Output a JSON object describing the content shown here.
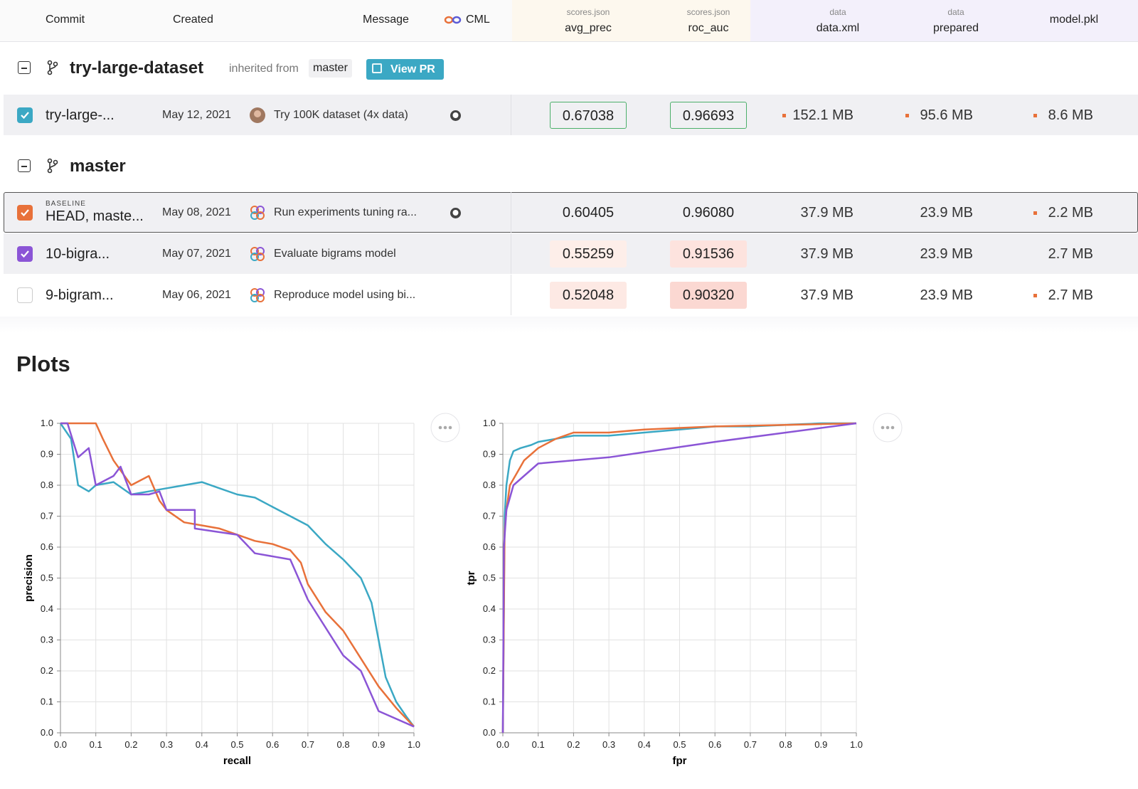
{
  "header": {
    "commit": "Commit",
    "created": "Created",
    "message": "Message",
    "cml": "CML",
    "columns": [
      {
        "group": "scores.json",
        "name": "avg_prec"
      },
      {
        "group": "scores.json",
        "name": "roc_auc"
      },
      {
        "group": "data",
        "name": "data.xml"
      },
      {
        "group": "data",
        "name": "prepared"
      },
      {
        "name": "model.pkl"
      }
    ]
  },
  "groups": [
    {
      "branch": "try-large-dataset",
      "inherited": "inherited from",
      "parent": "master",
      "button": "View PR",
      "rows": [
        {
          "commit": "try-large-...",
          "created": "May 12, 2021",
          "message": "Try 100K dataset (4x data)",
          "avg_prec": "0.67038",
          "roc_auc": "0.96693",
          "data_xml": "152.1 MB",
          "prepared": "95.6 MB",
          "model": "8.6 MB"
        }
      ]
    },
    {
      "branch": "master",
      "rows": [
        {
          "badge": "BASELINE",
          "commit": "HEAD, maste...",
          "created": "May 08, 2021",
          "message": "Run experiments tuning ra...",
          "avg_prec": "0.60405",
          "roc_auc": "0.96080",
          "data_xml": "37.9 MB",
          "prepared": "23.9 MB",
          "model": "2.2 MB"
        },
        {
          "commit": "10-bigra...",
          "created": "May 07, 2021",
          "message": "Evaluate bigrams model",
          "avg_prec": "0.55259",
          "roc_auc": "0.91536",
          "data_xml": "37.9 MB",
          "prepared": "23.9 MB",
          "model": "2.7 MB"
        },
        {
          "commit": "9-bigram...",
          "created": "May 06, 2021",
          "message": "Reproduce model using bi...",
          "avg_prec": "0.52048",
          "roc_auc": "0.90320",
          "data_xml": "37.9 MB",
          "prepared": "23.9 MB",
          "model": "2.7 MB"
        }
      ]
    }
  ],
  "plots_title": "Plots",
  "chart_data": [
    {
      "type": "line",
      "xlabel": "recall",
      "ylabel": "precision",
      "xlim": [
        0,
        1
      ],
      "ylim": [
        0,
        1
      ],
      "grid": true,
      "xticks": [
        {
          "value": 0,
          "label": "0.0"
        },
        0.1,
        0.2,
        0.3,
        0.4,
        0.5,
        0.6,
        0.7,
        0.8,
        0.9,
        {
          "value": 1,
          "label": "1.0"
        }
      ],
      "yticks": [
        {
          "value": 0,
          "label": "0.0"
        },
        0.1,
        0.2,
        0.3,
        0.4,
        0.5,
        0.6,
        0.7,
        0.8,
        0.9,
        {
          "value": 1,
          "label": "1.0"
        }
      ],
      "series": [
        {
          "color": "#3ba8c4",
          "x": [
            0,
            0.03,
            0.05,
            0.08,
            0.1,
            0.15,
            0.2,
            0.25,
            0.3,
            0.35,
            0.4,
            0.45,
            0.5,
            0.55,
            0.6,
            0.65,
            0.7,
            0.75,
            0.8,
            0.85,
            0.88,
            0.9,
            0.92,
            0.95,
            0.98,
            1.0
          ],
          "values": [
            1.0,
            0.95,
            0.8,
            0.78,
            0.8,
            0.81,
            0.77,
            0.78,
            0.79,
            0.8,
            0.81,
            0.79,
            0.77,
            0.76,
            0.73,
            0.7,
            0.67,
            0.61,
            0.56,
            0.5,
            0.42,
            0.3,
            0.18,
            0.1,
            0.05,
            0.02
          ]
        },
        {
          "color": "#e8713a",
          "x": [
            0,
            0.05,
            0.1,
            0.12,
            0.15,
            0.2,
            0.25,
            0.28,
            0.3,
            0.35,
            0.4,
            0.45,
            0.5,
            0.55,
            0.6,
            0.65,
            0.68,
            0.7,
            0.75,
            0.8,
            0.85,
            0.9,
            0.95,
            1.0
          ],
          "values": [
            1.0,
            1.0,
            1.0,
            0.95,
            0.88,
            0.8,
            0.83,
            0.75,
            0.72,
            0.68,
            0.67,
            0.66,
            0.64,
            0.62,
            0.61,
            0.59,
            0.55,
            0.48,
            0.39,
            0.33,
            0.24,
            0.15,
            0.08,
            0.02
          ]
        },
        {
          "color": "#8b55d6",
          "x": [
            0,
            0.02,
            0.05,
            0.08,
            0.1,
            0.15,
            0.17,
            0.2,
            0.25,
            0.28,
            0.3,
            0.38,
            0.38,
            0.5,
            0.55,
            0.65,
            0.7,
            0.8,
            0.85,
            0.9,
            1.0
          ],
          "values": [
            1.0,
            1.0,
            0.89,
            0.92,
            0.8,
            0.83,
            0.86,
            0.77,
            0.77,
            0.78,
            0.72,
            0.72,
            0.66,
            0.64,
            0.58,
            0.56,
            0.43,
            0.25,
            0.2,
            0.07,
            0.02
          ]
        }
      ]
    },
    {
      "type": "line",
      "xlabel": "fpr",
      "ylabel": "tpr",
      "xlim": [
        0,
        1
      ],
      "ylim": [
        0,
        1
      ],
      "grid": true,
      "xticks": [
        {
          "value": 0,
          "label": "0.0"
        },
        0.1,
        0.2,
        0.3,
        0.4,
        0.5,
        0.6,
        0.7,
        0.8,
        0.9,
        {
          "value": 1,
          "label": "1.0"
        }
      ],
      "yticks": [
        {
          "value": 0,
          "label": "0.0"
        },
        0.1,
        0.2,
        0.3,
        0.4,
        0.5,
        0.6,
        0.7,
        0.8,
        0.9,
        {
          "value": 1,
          "label": "1.0"
        }
      ],
      "series": [
        {
          "color": "#3ba8c4",
          "x": [
            0,
            0.005,
            0.01,
            0.02,
            0.03,
            0.05,
            0.08,
            0.1,
            0.15,
            0.2,
            0.3,
            0.4,
            0.5,
            0.6,
            0.7,
            0.8,
            0.9,
            1.0
          ],
          "values": [
            0,
            0.7,
            0.8,
            0.88,
            0.91,
            0.92,
            0.93,
            0.94,
            0.95,
            0.96,
            0.96,
            0.97,
            0.98,
            0.99,
            0.99,
            0.995,
            1.0,
            1.0
          ]
        },
        {
          "color": "#e8713a",
          "x": [
            0,
            0.005,
            0.01,
            0.02,
            0.04,
            0.06,
            0.08,
            0.1,
            0.15,
            0.2,
            0.3,
            0.4,
            0.5,
            0.6,
            0.8,
            1.0
          ],
          "values": [
            0,
            0.65,
            0.72,
            0.8,
            0.84,
            0.88,
            0.9,
            0.92,
            0.95,
            0.97,
            0.97,
            0.98,
            0.985,
            0.99,
            0.995,
            1.0
          ]
        },
        {
          "color": "#8b55d6",
          "x": [
            0,
            0.003,
            0.01,
            0.03,
            0.1,
            0.3,
            0.6,
            1.0
          ],
          "values": [
            0,
            0.6,
            0.72,
            0.8,
            0.87,
            0.89,
            0.94,
            1.0
          ]
        }
      ]
    }
  ]
}
